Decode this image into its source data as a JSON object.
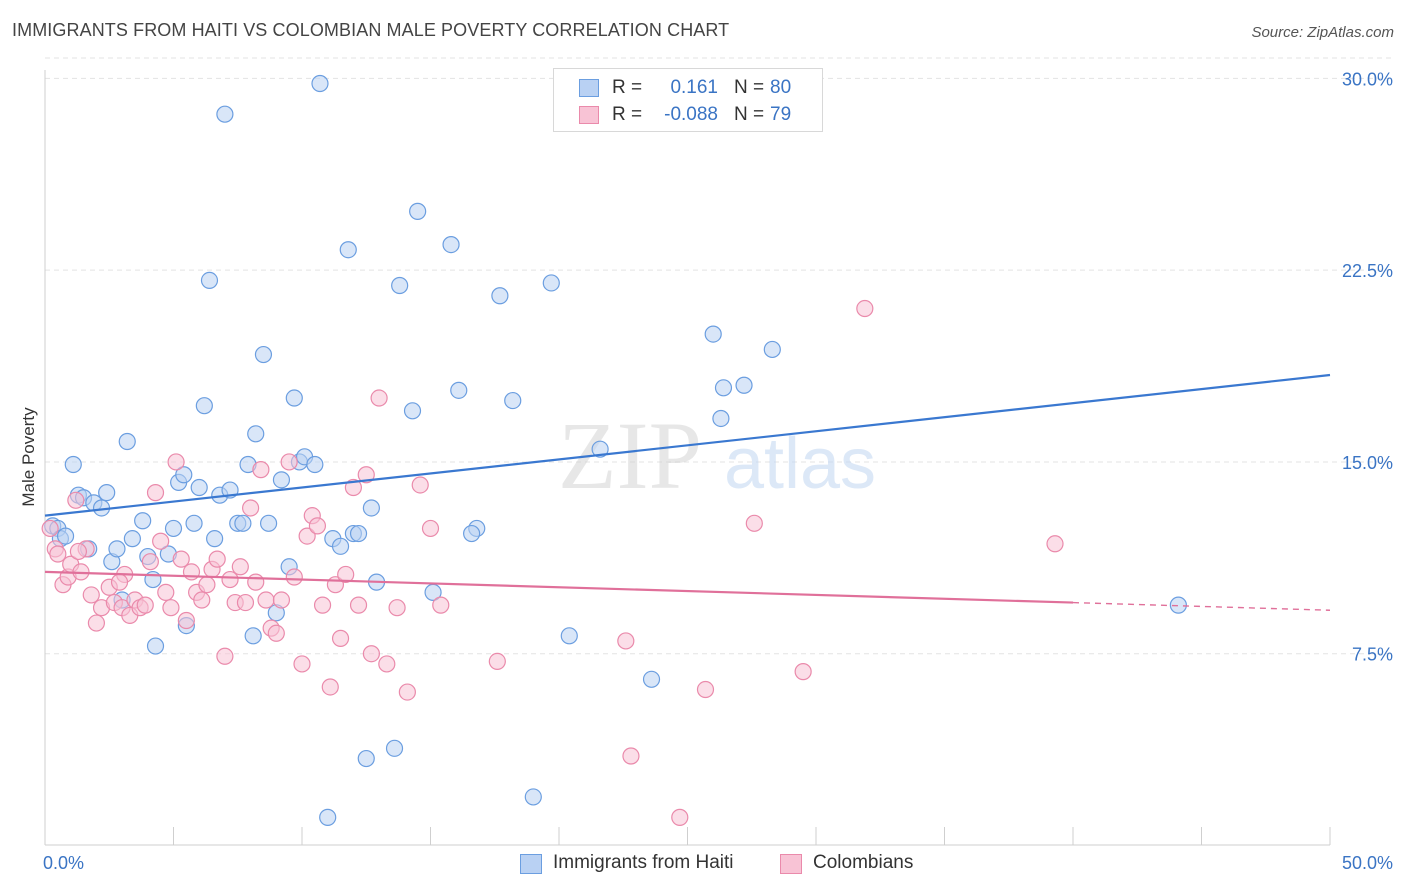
{
  "header": {
    "title": "IMMIGRANTS FROM HAITI VS COLOMBIAN MALE POVERTY CORRELATION CHART",
    "source": "Source: ZipAtlas.com"
  },
  "legend": {
    "r_label": "R =",
    "n_label": "N =",
    "series": [
      {
        "name": "Immigrants from Haiti",
        "r": "0.161",
        "n": "80",
        "fill": "#b9d1f3",
        "stroke": "#6b9ee0",
        "line": "#3a78d0"
      },
      {
        "name": "Colombians",
        "r": "-0.088",
        "n": "79",
        "fill": "#f8c3d5",
        "stroke": "#ea8aab",
        "line": "#e0709a"
      }
    ]
  },
  "watermark": {
    "zip": "ZIP",
    "atlas": "atlas"
  },
  "chart_data": {
    "type": "scatter",
    "title": "IMMIGRANTS FROM HAITI VS COLOMBIAN MALE POVERTY CORRELATION CHART",
    "xlabel": "",
    "ylabel": "Male Poverty",
    "xlim": [
      0,
      50
    ],
    "ylim": [
      0,
      31
    ],
    "x_ticks": [
      "0.0%",
      "50.0%"
    ],
    "y_ticks": [
      {
        "value": 7.5,
        "label": "7.5%"
      },
      {
        "value": 15.0,
        "label": "15.0%"
      },
      {
        "value": 22.5,
        "label": "22.5%"
      },
      {
        "value": 30.0,
        "label": "30.0%"
      }
    ],
    "grid": true,
    "legend_position": "top-center",
    "series": [
      {
        "name": "Immigrants from Haiti",
        "color": "#6b9ee0",
        "trend": {
          "x": [
            0,
            50
          ],
          "y": [
            12.9,
            18.4
          ]
        },
        "points": [
          [
            0.3,
            12.5
          ],
          [
            0.5,
            12.4
          ],
          [
            0.6,
            12.0
          ],
          [
            0.8,
            12.1
          ],
          [
            1.1,
            14.9
          ],
          [
            1.3,
            13.7
          ],
          [
            1.5,
            13.6
          ],
          [
            1.7,
            11.6
          ],
          [
            1.9,
            13.4
          ],
          [
            2.2,
            13.2
          ],
          [
            2.4,
            13.8
          ],
          [
            2.6,
            11.1
          ],
          [
            2.8,
            11.6
          ],
          [
            3.0,
            9.6
          ],
          [
            3.2,
            15.8
          ],
          [
            3.4,
            12.0
          ],
          [
            3.8,
            12.7
          ],
          [
            4.0,
            11.3
          ],
          [
            4.2,
            10.4
          ],
          [
            4.3,
            7.8
          ],
          [
            4.8,
            11.4
          ],
          [
            5.0,
            12.4
          ],
          [
            5.2,
            14.2
          ],
          [
            5.4,
            14.5
          ],
          [
            5.5,
            8.6
          ],
          [
            5.8,
            12.6
          ],
          [
            6.0,
            14.0
          ],
          [
            6.2,
            17.2
          ],
          [
            6.4,
            22.1
          ],
          [
            6.6,
            12.0
          ],
          [
            6.8,
            13.7
          ],
          [
            7.0,
            28.6
          ],
          [
            7.2,
            13.9
          ],
          [
            7.5,
            12.6
          ],
          [
            7.7,
            12.6
          ],
          [
            7.9,
            14.9
          ],
          [
            8.1,
            8.2
          ],
          [
            8.2,
            16.1
          ],
          [
            8.5,
            19.2
          ],
          [
            8.7,
            12.6
          ],
          [
            9.0,
            9.1
          ],
          [
            9.2,
            14.3
          ],
          [
            9.5,
            10.9
          ],
          [
            9.7,
            17.5
          ],
          [
            9.9,
            15.0
          ],
          [
            10.1,
            15.2
          ],
          [
            10.5,
            14.9
          ],
          [
            10.7,
            29.8
          ],
          [
            11.0,
            1.1
          ],
          [
            11.2,
            12.0
          ],
          [
            11.5,
            11.7
          ],
          [
            11.8,
            23.3
          ],
          [
            12.0,
            12.2
          ],
          [
            12.2,
            12.2
          ],
          [
            12.5,
            3.4
          ],
          [
            12.7,
            13.2
          ],
          [
            12.9,
            10.3
          ],
          [
            13.6,
            3.8
          ],
          [
            13.8,
            21.9
          ],
          [
            14.3,
            17.0
          ],
          [
            14.5,
            24.8
          ],
          [
            15.1,
            9.9
          ],
          [
            15.8,
            23.5
          ],
          [
            16.1,
            17.8
          ],
          [
            16.8,
            12.4
          ],
          [
            17.7,
            21.5
          ],
          [
            18.2,
            17.4
          ],
          [
            19.0,
            1.9
          ],
          [
            19.7,
            22.0
          ],
          [
            20.4,
            8.2
          ],
          [
            21.6,
            15.5
          ],
          [
            23.6,
            6.5
          ],
          [
            26.0,
            20.0
          ],
          [
            26.3,
            16.7
          ],
          [
            26.4,
            17.9
          ],
          [
            27.2,
            18.0
          ],
          [
            28.3,
            19.4
          ],
          [
            44.1,
            9.4
          ],
          [
            20.5,
            29.0
          ],
          [
            16.6,
            12.2
          ]
        ]
      },
      {
        "name": "Colombians",
        "color": "#ea8aab",
        "trend": {
          "x": [
            0,
            50
          ],
          "y": [
            10.7,
            9.2
          ],
          "solid_until": 40
        },
        "points": [
          [
            0.2,
            12.4
          ],
          [
            0.4,
            11.6
          ],
          [
            0.5,
            11.4
          ],
          [
            0.7,
            10.2
          ],
          [
            0.9,
            10.5
          ],
          [
            1.0,
            11.0
          ],
          [
            1.2,
            13.5
          ],
          [
            1.4,
            10.7
          ],
          [
            1.6,
            11.6
          ],
          [
            1.8,
            9.8
          ],
          [
            2.0,
            8.7
          ],
          [
            2.2,
            9.3
          ],
          [
            2.5,
            10.1
          ],
          [
            2.7,
            9.5
          ],
          [
            3.0,
            9.3
          ],
          [
            3.1,
            10.6
          ],
          [
            3.3,
            9.0
          ],
          [
            3.5,
            9.6
          ],
          [
            3.7,
            9.3
          ],
          [
            3.9,
            9.4
          ],
          [
            4.1,
            11.1
          ],
          [
            4.3,
            13.8
          ],
          [
            4.5,
            11.9
          ],
          [
            4.7,
            9.9
          ],
          [
            4.9,
            9.3
          ],
          [
            5.1,
            15.0
          ],
          [
            5.3,
            11.2
          ],
          [
            5.5,
            8.8
          ],
          [
            5.7,
            10.7
          ],
          [
            5.9,
            9.9
          ],
          [
            6.1,
            9.6
          ],
          [
            6.3,
            10.2
          ],
          [
            6.5,
            10.8
          ],
          [
            6.7,
            11.2
          ],
          [
            7.0,
            7.4
          ],
          [
            7.2,
            10.4
          ],
          [
            7.4,
            9.5
          ],
          [
            7.6,
            10.9
          ],
          [
            7.8,
            9.5
          ],
          [
            8.0,
            13.2
          ],
          [
            8.2,
            10.3
          ],
          [
            8.4,
            14.7
          ],
          [
            8.6,
            9.6
          ],
          [
            8.8,
            8.5
          ],
          [
            9.0,
            8.3
          ],
          [
            9.2,
            9.6
          ],
          [
            9.5,
            15.0
          ],
          [
            9.7,
            10.5
          ],
          [
            10.0,
            7.1
          ],
          [
            10.2,
            12.1
          ],
          [
            10.4,
            12.9
          ],
          [
            10.6,
            12.5
          ],
          [
            10.8,
            9.4
          ],
          [
            11.1,
            6.2
          ],
          [
            11.3,
            10.2
          ],
          [
            11.5,
            8.1
          ],
          [
            11.7,
            10.6
          ],
          [
            12.0,
            14.0
          ],
          [
            12.2,
            9.4
          ],
          [
            12.5,
            14.5
          ],
          [
            12.7,
            7.5
          ],
          [
            13.0,
            17.5
          ],
          [
            13.3,
            7.1
          ],
          [
            13.7,
            9.3
          ],
          [
            14.1,
            6.0
          ],
          [
            14.6,
            14.1
          ],
          [
            15.0,
            12.4
          ],
          [
            15.4,
            9.4
          ],
          [
            17.6,
            7.2
          ],
          [
            22.6,
            8.0
          ],
          [
            22.8,
            3.5
          ],
          [
            24.7,
            1.1
          ],
          [
            25.7,
            6.1
          ],
          [
            27.6,
            12.6
          ],
          [
            29.5,
            6.8
          ],
          [
            31.9,
            21.0
          ],
          [
            39.3,
            11.8
          ],
          [
            1.3,
            11.5
          ],
          [
            2.9,
            10.3
          ]
        ]
      }
    ]
  }
}
